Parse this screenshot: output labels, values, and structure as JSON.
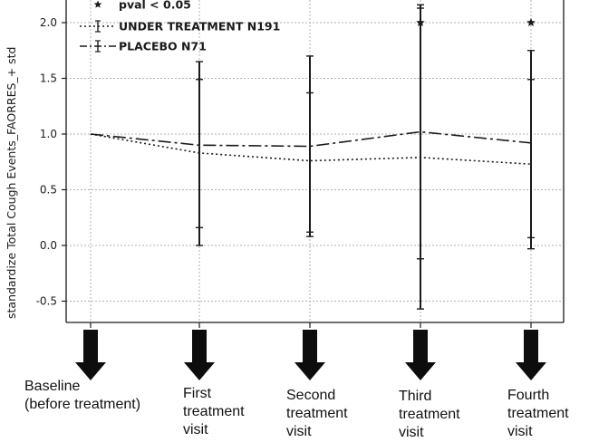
{
  "chart_data": {
    "type": "line",
    "ylabel": "standardize Total Cough Events_FAORRES_+ std",
    "ylim": [
      -0.7,
      2.2
    ],
    "yticks": [
      2.0,
      1.5,
      1.0,
      0.5,
      0.0,
      -0.5
    ],
    "ytick_labels": [
      "2.0",
      "1.5",
      "1.0",
      "0.5",
      "0.0",
      "-0.5"
    ],
    "grid": true,
    "legend_placement": "top-left",
    "x": [
      0,
      1,
      2,
      3,
      4
    ],
    "categories": [
      "Baseline\n(before treatment)",
      "First\ntreatment\nvisit",
      "Second\ntreatment\nvisit",
      "Third\ntreatment\nvisit",
      "Fourth\ntreatment\nvisit"
    ],
    "legend": [
      {
        "label": "pval < 0.05",
        "marker": "star"
      },
      {
        "label": "UNDER TREATMENT N191",
        "style": "dotted"
      },
      {
        "label": "PLACEBO N71",
        "style": "dashdot"
      }
    ],
    "series": [
      {
        "name": "UNDER TREATMENT N191",
        "style": "dotted",
        "values": [
          1.0,
          0.83,
          0.76,
          0.79,
          0.73
        ],
        "err_low": [
          1.0,
          0.16,
          0.12,
          -0.12,
          0.07
        ],
        "err_high": [
          1.0,
          1.49,
          1.37,
          2.13,
          1.49
        ]
      },
      {
        "name": "PLACEBO N71",
        "style": "dashdot",
        "values": [
          1.0,
          0.9,
          0.89,
          1.02,
          0.92
        ],
        "err_low": [
          1.0,
          0.0,
          0.08,
          -0.57,
          -0.03
        ],
        "err_high": [
          1.0,
          1.65,
          1.7,
          2.16,
          1.75
        ]
      }
    ],
    "significance_markers": [
      {
        "x": 3,
        "y": 2.0,
        "marker": "star"
      },
      {
        "x": 4,
        "y": 2.0,
        "marker": "star"
      }
    ]
  },
  "colors": {
    "line": "#1a1a1a",
    "grid": "#b0b0b0",
    "arrow": "#0d0d0d"
  }
}
